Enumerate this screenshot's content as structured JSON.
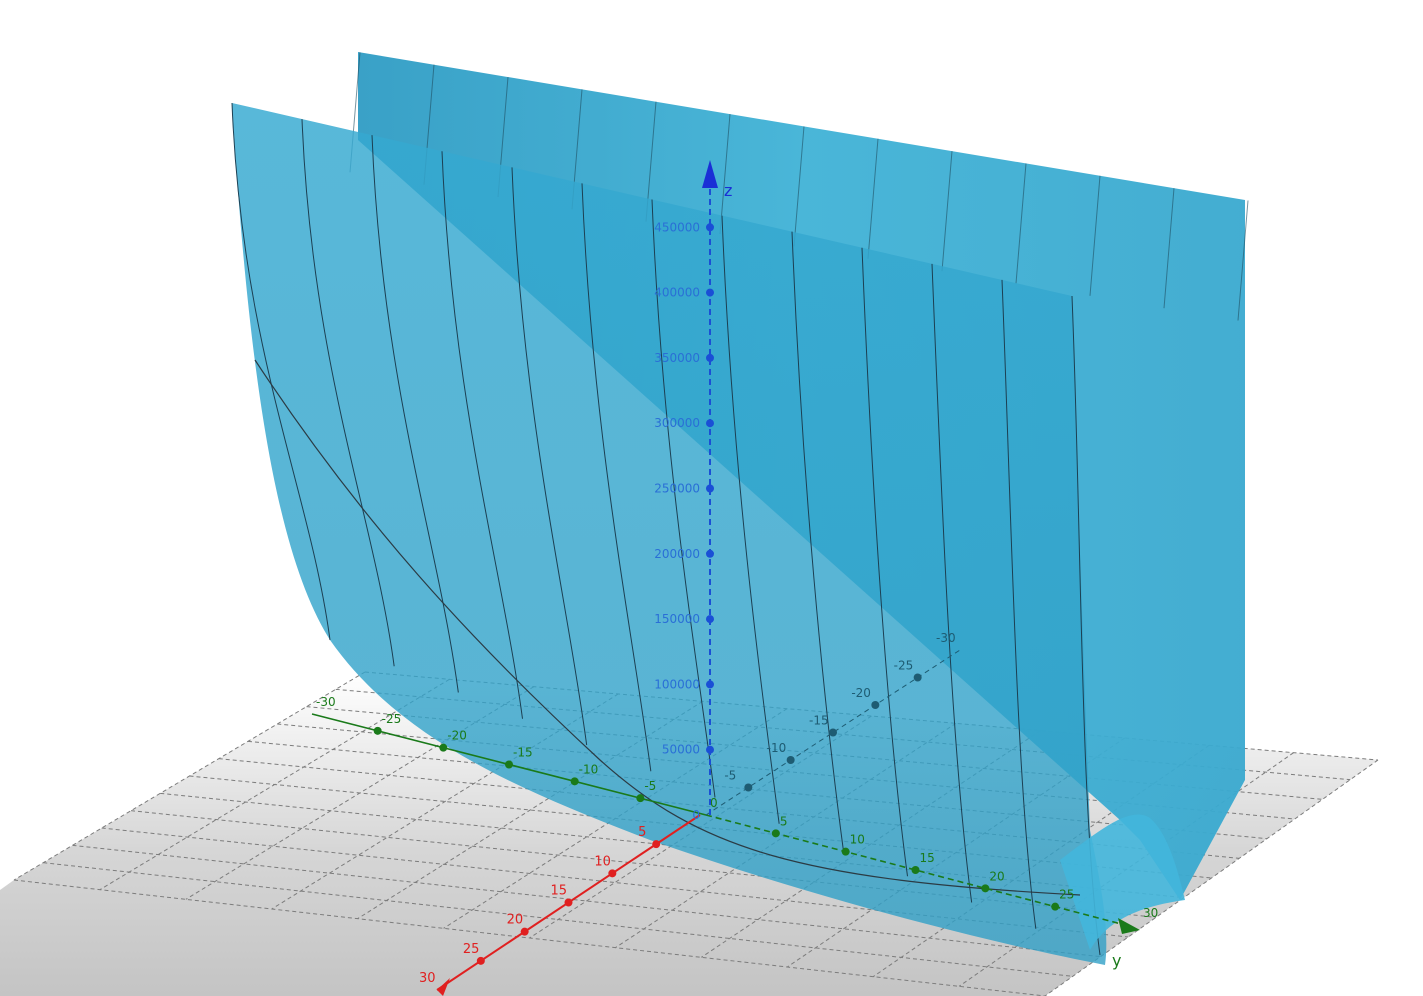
{
  "view": {
    "type": "3d-graphing",
    "surface_color": "#3aaed0",
    "grid_color": "#8a8a8a",
    "floor_color": "#d8d8d8",
    "colors": {
      "x_axis": "#e02020",
      "y_axis": "#1a7a1a",
      "z_axis": "#1a2fd6"
    }
  },
  "axes": {
    "x": {
      "name": "",
      "ticks": [
        "5",
        "10",
        "15",
        "20",
        "25",
        "30"
      ]
    },
    "y": {
      "name": "y",
      "ticks_negative": [
        "-30",
        "-25",
        "-20",
        "-15",
        "-10",
        "-5"
      ],
      "ticks_positive": [
        "0",
        "5",
        "10",
        "15",
        "20",
        "25",
        "30"
      ]
    },
    "z": {
      "name": "z",
      "ticks": [
        "0",
        "50000",
        "100000",
        "150000",
        "200000",
        "250000",
        "300000",
        "350000",
        "400000",
        "450000"
      ]
    },
    "x_back": {
      "ticks": [
        "-5",
        "-10",
        "-15",
        "-20",
        "-25",
        "-30"
      ]
    }
  }
}
